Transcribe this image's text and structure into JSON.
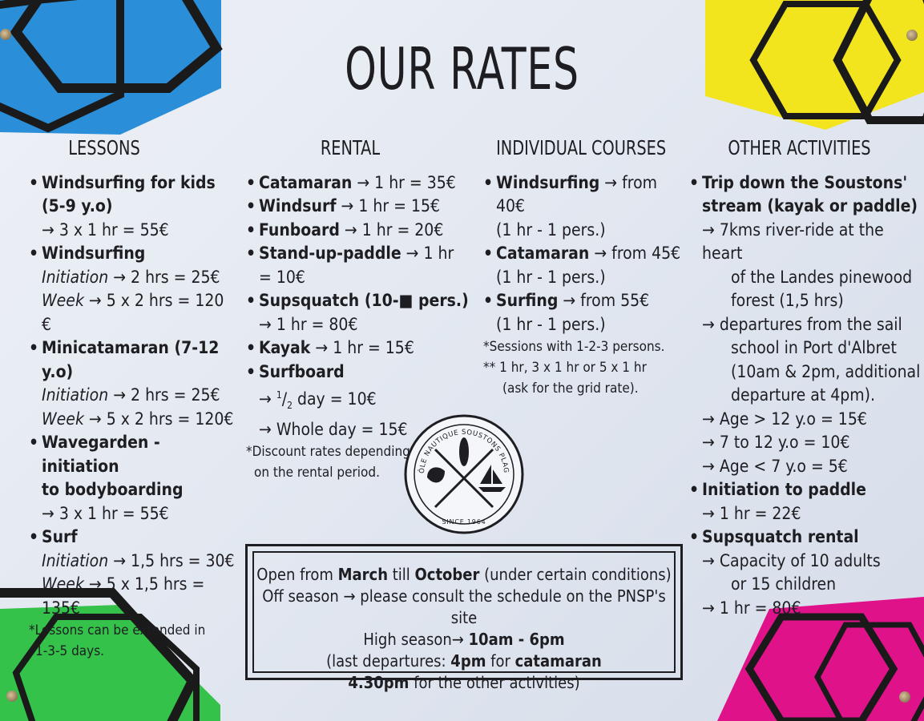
{
  "title": "OUR RATES",
  "colors": {
    "blue": "#2a8fd8",
    "yellow": "#f2e41d",
    "green": "#34c24a",
    "magenta": "#e0128a",
    "ink": "#1e1e22"
  },
  "lessons": {
    "heading": "LESSONS",
    "kids_title": "Windsurfing for kids",
    "kids_age": "(5-9 y.o)",
    "kids_price": "→ 3 x 1 hr = 55€",
    "windsurf_title": "Windsurfing",
    "windsurf_init_label": "Initiation",
    "windsurf_init_price": " → 2 hrs = 25€",
    "windsurf_week_label": "Week",
    "windsurf_week_price": " → 5 x 2 hrs = 120 €",
    "minicat_title": "Minicatamaran (7-12 y.o)",
    "minicat_init_label": "Initiation",
    "minicat_init_price": " → 2 hrs = 25€",
    "minicat_week_label": "Week",
    "minicat_week_price": " → 5 x 2 hrs = 120€",
    "wave_title_1": "Wavegarden - initiation",
    "wave_title_2": "to bodyboarding",
    "wave_price": "→ 3 x 1 hr = 55€",
    "surf_title": "Surf",
    "surf_init_label": "Initiation",
    "surf_init_price": " → 1,5 hrs = 30€",
    "surf_week_label": "Week",
    "surf_week_price": " → 5 x 1,5 hrs = 135€",
    "note_1": "*Lessons can be extended in",
    "note_2": "1-3-5 days."
  },
  "rental": {
    "heading": "RENTAL",
    "cat_name": "Catamaran",
    "cat_price": " → 1 hr = 35€",
    "windsurf_name": "Windsurf",
    "windsurf_price": " → 1 hr = 15€",
    "fun_name": "Funboard",
    "fun_price": " → 1 hr = 20€",
    "sup_name": "Stand-up-paddle",
    "sup_price": " → 1 hr = 10€",
    "squatch_name": "Supsquatch (10-■ pers.)",
    "squatch_price": "→ 1 hr = 80€",
    "kayak_name": "Kayak",
    "kayak_price": " → 1 hr = 15€",
    "surfboard_name": "Surfboard",
    "half_prefix": "→ ",
    "half_num": "1",
    "half_den": "2",
    "half_suffix": " day = 10€",
    "whole_price": "→ Whole day = 15€",
    "note_1": "*Discount rates depending",
    "note_2": "on the rental period."
  },
  "courses": {
    "heading": "INDIVIDUAL COURSES",
    "windsurf_name": "Windsurfing",
    "windsurf_price": " → from 40€",
    "windsurf_detail": "(1 hr - 1 pers.)",
    "cat_name": "Catamaran",
    "cat_price": " → from 45€",
    "cat_detail": "(1 hr - 1 pers.)",
    "surf_name": "Surfing",
    "surf_price": " → from 55€",
    "surf_detail": "(1 hr - 1 pers.)",
    "note_1": "*Sessions with 1-2-3 persons.",
    "note_2": "** 1 hr, 3 x 1 hr or 5 x 1 hr",
    "note_3": "(ask for the grid rate)."
  },
  "other": {
    "heading": "OTHER ACTIVITIES",
    "trip_title_1": "Trip down the Soustons'",
    "trip_title_2": "stream (kayak or paddle)",
    "trip_l1": "→ 7kms river-ride at the heart",
    "trip_l2": "of the Landes pinewood",
    "trip_l3": "forest (1,5 hrs)",
    "trip_l4": "→ departures from the sail",
    "trip_l5": "school in Port d'Albret",
    "trip_l6": "(10am & 2pm, additional",
    "trip_l7": "departure at 4pm).",
    "age_1": "→ Age > 12 y.o = 15€",
    "age_2": "→ 7 to 12 y.o = 10€",
    "age_3": "→ Age < 7 y.o = 5€",
    "paddle_title": "Initiation to paddle",
    "paddle_price": "→ 1 hr = 22€",
    "squatch_title": "Supsquatch rental",
    "squatch_l1": "→ Capacity of 10 adults",
    "squatch_l2": "or 15 children",
    "squatch_price": "→ 1 hr = 80€"
  },
  "stamp": {
    "arc_text": "PÔLE NAUTIQUE SOUSTONS PLAGE",
    "since": "SINCE 1964"
  },
  "hours": {
    "l1_a": "Open from ",
    "l1_b": "March",
    "l1_c": " till ",
    "l1_d": "October",
    "l1_e": " (under certain conditions)",
    "l2": "Off season → please consult the schedule on the PNSP's site",
    "l3_a": "High season→ ",
    "l3_b": "10am - 6pm",
    "l4_a": "(last departures: ",
    "l4_b": "4pm",
    "l4_c": " for ",
    "l4_d": "catamaran",
    "l5_a": "4.30pm",
    "l5_b": " for the other activities)"
  }
}
